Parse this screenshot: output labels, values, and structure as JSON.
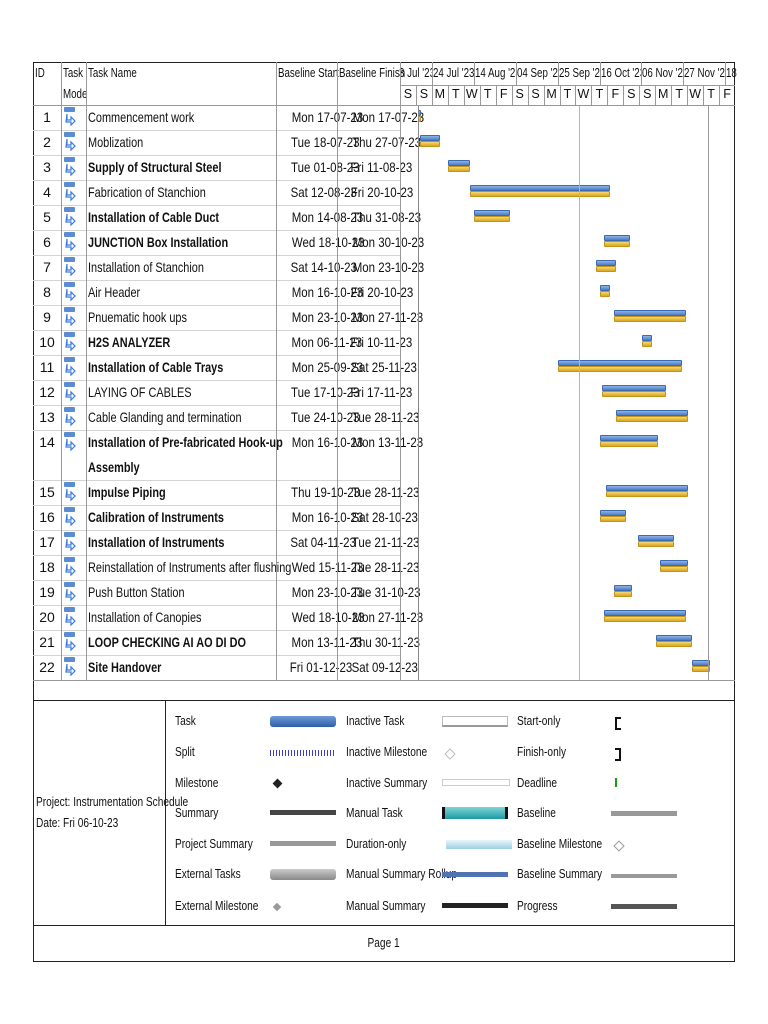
{
  "columns": {
    "id": "ID",
    "mode_line1": "Task",
    "mode_line2": "Mode",
    "name": "Task Name",
    "baseline_start": "Baseline Start",
    "baseline_finish": "Baseline Finish"
  },
  "timescale": {
    "major": [
      "3 Jul '23",
      "24 Jul '23",
      "14 Aug '23",
      "04 Sep '23",
      "25 Sep '23",
      "16 Oct '23",
      "06 Nov '23",
      "27 Nov '23",
      "18"
    ],
    "minor": [
      "S",
      "S",
      "M",
      "T",
      "W",
      "T",
      "F",
      "S",
      "S",
      "M",
      "T",
      "W",
      "T",
      "F",
      "S",
      "S",
      "M",
      "T",
      "W",
      "T",
      "F"
    ]
  },
  "colors": {
    "task": "#4a7cc4",
    "baseline": "#e0b030",
    "current_date_line": "#f4a46a"
  },
  "tasks": [
    {
      "id": "1",
      "mode_icon": "auto-scheduled-task-icon",
      "name": "Commencement work",
      "bold": false,
      "start": "Mon 17-07-23",
      "finish": "Mon 17-07-23"
    },
    {
      "id": "2",
      "mode_icon": "auto-scheduled-task-icon",
      "name": "Moblization",
      "bold": false,
      "start": "Tue 18-07-23",
      "finish": "Thu 27-07-23"
    },
    {
      "id": "3",
      "mode_icon": "auto-scheduled-task-icon",
      "name": "Supply of Structural Steel",
      "bold": true,
      "start": "Tue 01-08-23",
      "finish": "Fri 11-08-23"
    },
    {
      "id": "4",
      "mode_icon": "auto-scheduled-task-icon",
      "name": "Fabrication of Stanchion",
      "bold": false,
      "start": "Sat 12-08-23",
      "finish": "Fri 20-10-23"
    },
    {
      "id": "5",
      "mode_icon": "auto-scheduled-task-icon",
      "name": "Installation of Cable Duct",
      "bold": true,
      "start": "Mon 14-08-23",
      "finish": "Thu 31-08-23"
    },
    {
      "id": "6",
      "mode_icon": "auto-scheduled-task-icon",
      "name": "JUNCTION Box Installation",
      "bold": true,
      "start": "Wed 18-10-23",
      "finish": "Mon 30-10-23"
    },
    {
      "id": "7",
      "mode_icon": "auto-scheduled-task-icon",
      "name": "Installation of Stanchion",
      "bold": false,
      "start": "Sat 14-10-23",
      "finish": "Mon 23-10-23"
    },
    {
      "id": "8",
      "mode_icon": "auto-scheduled-task-icon",
      "name": "Air Header",
      "bold": false,
      "start": "Mon 16-10-23",
      "finish": "Fri 20-10-23"
    },
    {
      "id": "9",
      "mode_icon": "auto-scheduled-task-icon",
      "name": "Pnuematic hook ups",
      "bold": false,
      "start": "Mon 23-10-23",
      "finish": "Mon 27-11-23"
    },
    {
      "id": "10",
      "mode_icon": "auto-scheduled-task-icon",
      "name": "H2S ANALYZER",
      "bold": true,
      "start": "Mon 06-11-23",
      "finish": "Fri 10-11-23"
    },
    {
      "id": "11",
      "mode_icon": "auto-scheduled-task-icon",
      "name": "Installation of Cable Trays",
      "bold": true,
      "start": "Mon 25-09-23",
      "finish": "Sat 25-11-23"
    },
    {
      "id": "12",
      "mode_icon": "auto-scheduled-task-icon",
      "name": "LAYING OF CABLES",
      "bold": false,
      "start": "Tue 17-10-23",
      "finish": "Fri 17-11-23"
    },
    {
      "id": "13",
      "mode_icon": "auto-scheduled-task-icon",
      "name": "Cable Glanding and termination",
      "bold": false,
      "start": "Tue 24-10-23",
      "finish": "Tue 28-11-23"
    },
    {
      "id": "14",
      "mode_icon": "auto-scheduled-task-icon",
      "name": "Installation of Pre-fabricated Hook-up",
      "name2": "Assembly",
      "bold": true,
      "start": "Mon 16-10-23",
      "finish": "Mon 13-11-23"
    },
    {
      "id": "15",
      "mode_icon": "auto-scheduled-task-icon",
      "name": "Impulse Piping",
      "bold": true,
      "start": "Thu 19-10-23",
      "finish": "Tue 28-11-23"
    },
    {
      "id": "16",
      "mode_icon": "auto-scheduled-task-icon",
      "name": "Calibration of Instruments",
      "bold": true,
      "start": "Mon 16-10-23",
      "finish": "Sat 28-10-23"
    },
    {
      "id": "17",
      "mode_icon": "auto-scheduled-task-icon",
      "name": "Installation of Instruments",
      "bold": true,
      "start": "Sat 04-11-23",
      "finish": "Tue 21-11-23"
    },
    {
      "id": "18",
      "mode_icon": "auto-scheduled-task-icon",
      "name": "Reinstallation of Instruments after flushing",
      "bold": false,
      "start": "Wed 15-11-23",
      "finish": "Tue 28-11-23"
    },
    {
      "id": "19",
      "mode_icon": "auto-scheduled-task-icon",
      "name": "Push Button Station",
      "bold": false,
      "start": "Mon 23-10-23",
      "finish": "Tue 31-10-23"
    },
    {
      "id": "20",
      "mode_icon": "auto-scheduled-task-icon",
      "name": "Installation of Canopies",
      "bold": false,
      "start": "Wed 18-10-23",
      "finish": "Mon 27-11-23"
    },
    {
      "id": "21",
      "mode_icon": "auto-scheduled-task-icon",
      "name": "LOOP CHECKING AI AO DI DO",
      "bold": true,
      "start": "Mon 13-11-23",
      "finish": "Thu 30-11-23"
    },
    {
      "id": "22",
      "mode_icon": "auto-scheduled-task-icon",
      "name": "Site Handover",
      "bold": true,
      "start": "Fri 01-12-23",
      "finish": "Sat 09-12-23"
    }
  ],
  "legend": {
    "project": "Project: Instrumentation Schedule",
    "date": "Date: Fri 06-10-23",
    "items": [
      [
        "Task",
        "Inactive Task",
        "Start-only"
      ],
      [
        "Split",
        "Inactive Milestone",
        "Finish-only"
      ],
      [
        "Milestone",
        "Inactive Summary",
        "Deadline"
      ],
      [
        "Summary",
        "Manual Task",
        "Baseline"
      ],
      [
        "Project Summary",
        "Duration-only",
        "Baseline Milestone"
      ],
      [
        "External Tasks",
        "Manual Summary Rollup",
        "Baseline Summary"
      ],
      [
        "External Milestone",
        "Manual Summary",
        "Progress"
      ]
    ]
  },
  "footer": {
    "page": "Page 1"
  }
}
